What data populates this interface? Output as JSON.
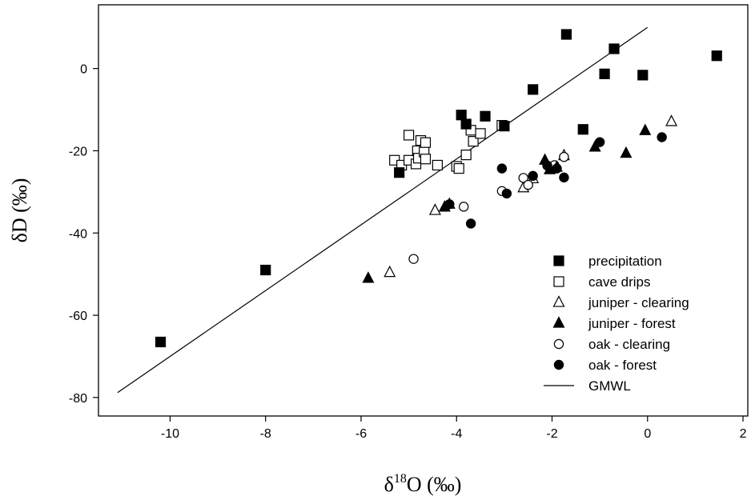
{
  "chart_data": {
    "type": "scatter",
    "xlabel_main": "δ",
    "xlabel_sup": "18",
    "xlabel_rest": "O (‰)",
    "ylabel": "δD (‰)",
    "xlim": [
      -11.5,
      2.1
    ],
    "ylim": [
      -84.5,
      15.5
    ],
    "x_ticks": [
      -10,
      -8,
      -6,
      -4,
      -2,
      0,
      2
    ],
    "y_ticks": [
      0,
      -20,
      -40,
      -60,
      -80
    ],
    "legend_position": "bottom-right",
    "series": [
      {
        "name": "precipitation",
        "marker": "square-filled",
        "points": [
          [
            -10.2,
            -66.5
          ],
          [
            -8.0,
            -49.0
          ],
          [
            -5.2,
            -25.3
          ],
          [
            -3.9,
            -11.3
          ],
          [
            -3.8,
            -13.5
          ],
          [
            -3.4,
            -11.6
          ],
          [
            -3.0,
            -14.0
          ],
          [
            -2.4,
            -5.1
          ],
          [
            -1.7,
            8.3
          ],
          [
            -1.35,
            -14.8
          ],
          [
            -0.9,
            -1.3
          ],
          [
            -0.7,
            4.8
          ],
          [
            -0.1,
            -1.6
          ],
          [
            1.45,
            3.1
          ]
        ]
      },
      {
        "name": "cave drips",
        "marker": "square-open",
        "points": [
          [
            -5.3,
            -22.3
          ],
          [
            -5.15,
            -23.5
          ],
          [
            -5.0,
            -16.2
          ],
          [
            -5.0,
            -22.3
          ],
          [
            -4.85,
            -23.2
          ],
          [
            -4.82,
            -20.0
          ],
          [
            -4.8,
            -21.8
          ],
          [
            -4.75,
            -17.5
          ],
          [
            -4.68,
            -20.3
          ],
          [
            -4.65,
            -22.0
          ],
          [
            -4.65,
            -18.0
          ],
          [
            -4.4,
            -23.5
          ],
          [
            -4.0,
            -23.8
          ],
          [
            -3.95,
            -24.3
          ],
          [
            -3.8,
            -21.0
          ],
          [
            -3.7,
            -15.0
          ],
          [
            -3.65,
            -17.7
          ],
          [
            -3.5,
            -15.8
          ],
          [
            -3.05,
            -13.8
          ]
        ]
      },
      {
        "name": "juniper - clearing",
        "marker": "triangle-open",
        "points": [
          [
            -5.4,
            -49.6
          ],
          [
            -4.45,
            -34.5
          ],
          [
            -2.6,
            -29.0
          ],
          [
            -2.4,
            -26.8
          ],
          [
            -1.75,
            -21.2
          ],
          [
            0.5,
            -12.9
          ]
        ]
      },
      {
        "name": "juniper - forest",
        "marker": "triangle-filled",
        "points": [
          [
            -5.85,
            -51.0
          ],
          [
            -4.25,
            -33.7
          ],
          [
            -4.15,
            -33.0
          ],
          [
            -2.15,
            -22.3
          ],
          [
            -2.05,
            -24.6
          ],
          [
            -1.9,
            -24.0
          ],
          [
            -1.1,
            -19.1
          ],
          [
            -0.45,
            -20.6
          ],
          [
            -0.05,
            -15.1
          ]
        ]
      },
      {
        "name": "oak - clearing",
        "marker": "circle-open",
        "points": [
          [
            -4.9,
            -46.3
          ],
          [
            -3.85,
            -33.6
          ],
          [
            -3.05,
            -29.8
          ],
          [
            -2.6,
            -26.6
          ],
          [
            -2.5,
            -28.3
          ],
          [
            -1.95,
            -23.5
          ],
          [
            -1.75,
            -21.5
          ]
        ]
      },
      {
        "name": "oak - forest",
        "marker": "circle-filled",
        "points": [
          [
            -4.15,
            -33.0
          ],
          [
            -3.7,
            -37.7
          ],
          [
            -3.05,
            -24.3
          ],
          [
            -2.95,
            -30.4
          ],
          [
            -2.4,
            -26.1
          ],
          [
            -2.1,
            -23.6
          ],
          [
            -1.9,
            -24.3
          ],
          [
            -1.75,
            -26.5
          ],
          [
            -1.0,
            -17.9
          ],
          [
            0.3,
            -16.7
          ]
        ]
      },
      {
        "name": "GMWL",
        "marker": "line",
        "points": [
          [
            -11.1,
            -78.8
          ],
          [
            0.0,
            10.0
          ]
        ]
      }
    ]
  }
}
